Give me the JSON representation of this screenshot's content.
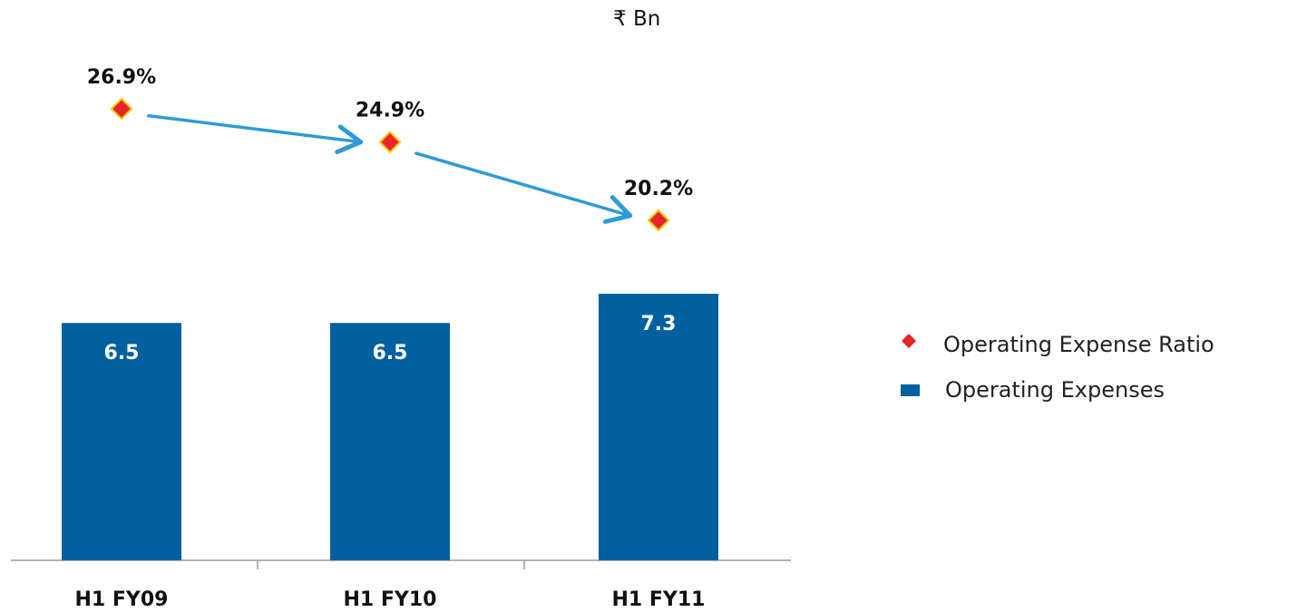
{
  "unit_label": "₹ Bn",
  "colors": {
    "bar": "#0060A0",
    "marker": "#E8232A",
    "marker_outline": "#F5C400",
    "arrow": "#2E9BD6",
    "axis": "#9A9A9A",
    "bar_label": "#FFFFFF",
    "text": "#111111"
  },
  "chart_data": {
    "type": "bar",
    "categories": [
      "H1 FY09",
      "H1 FY10",
      "H1 FY11"
    ],
    "series": [
      {
        "name": "Operating Expenses",
        "type": "bar",
        "values": [
          6.5,
          6.5,
          7.3
        ],
        "value_labels": [
          "6.5",
          "6.5",
          "7.3"
        ]
      },
      {
        "name": "Operating Expense Ratio",
        "type": "scatter",
        "marker": "diamond",
        "values": [
          26.9,
          24.9,
          20.2
        ],
        "value_labels": [
          "26.9%",
          "24.9%",
          "20.2%"
        ]
      }
    ],
    "annotations": [
      "arrow from H1 FY09 to H1 FY10 marker",
      "arrow from H1 FY10 to H1 FY11 marker"
    ],
    "legend": {
      "position": "right",
      "entries": [
        "Operating Expense Ratio",
        "Operating Expenses"
      ]
    },
    "grid": false
  }
}
